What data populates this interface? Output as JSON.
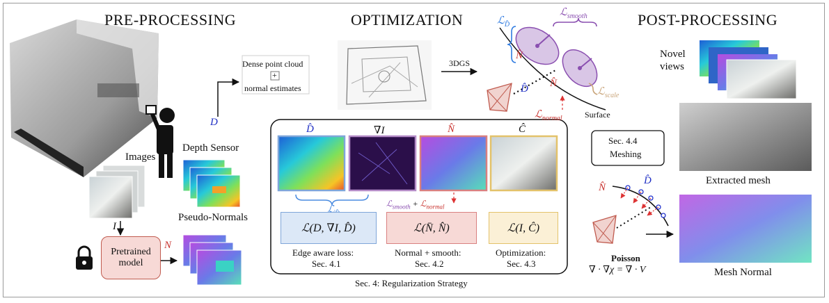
{
  "headings": {
    "pre": "PRE-PROCESSING",
    "opt": "OPTIMIZATION",
    "post": "POST-PROCESSING"
  },
  "pre": {
    "images_label": "Images",
    "image_symbol": "I",
    "depth_symbol": "D",
    "depth_sensor_label": "Depth Sensor",
    "pseudo_normals_label": "Pseudo-Normals",
    "normal_symbol": "N",
    "pretrained_label_1": "Pretrained",
    "pretrained_label_2": "model"
  },
  "opt": {
    "dense_label": "Dense point cloud",
    "plus": "+",
    "normal_estimates": "normal estimates",
    "arrow_3dgs": "3DGS",
    "loss_d": "ℒ",
    "loss_d_sub": "D̂",
    "loss_smooth": "ℒ",
    "loss_smooth_sub": "smooth",
    "loss_scale": "ℒ",
    "loss_scale_sub": "scale",
    "loss_normal": "ℒ",
    "loss_normal_sub": "normal",
    "n_hat": "N̂",
    "d_hat": "D̂",
    "surface": "Surface"
  },
  "reg": {
    "col_d": "D̂",
    "col_grad": "∇I",
    "col_n": "N̂",
    "col_c": "Ĉ",
    "brace_loss": "ℒ",
    "brace_loss_sub": "D̂",
    "smooth_normal_a": "ℒ",
    "smooth_normal_a_sub": "smooth",
    "smooth_normal_plus": "+",
    "smooth_normal_b": "ℒ",
    "smooth_normal_b_sub": "normal",
    "box1": "ℒ(D, ∇I, D̂)",
    "box2": "ℒ(N̄, N̂)",
    "box3": "ℒ(I, Ĉ)",
    "cap1a": "Edge aware loss:",
    "cap1b": "Sec. 4.1",
    "cap2a": "Normal + smooth:",
    "cap2b": "Sec. 4.2",
    "cap3a": "Optimization:",
    "cap3b": "Sec. 4.3",
    "caption": "Sec. 4: Regularization Strategy"
  },
  "post": {
    "novel_1": "Novel",
    "novel_2": "views",
    "meshing_1": "Sec. 4.4",
    "meshing_2": "Meshing",
    "n_hat": "N̂",
    "d_hat": "D̂",
    "poisson": "Poisson",
    "poisson_eq": "∇ · ∇χ = ∇ · V⃗",
    "extracted_mesh": "Extracted mesh",
    "mesh_normal": "Mesh Normal"
  },
  "colors": {
    "blue_border": "#7fa6d9",
    "purple_border": "#b58cc8",
    "red_border": "#d98080",
    "yellow_border": "#e3c26a",
    "blue_fill": "#dce8f7",
    "red_fill": "#f7d9d6",
    "yellow_fill": "#fbf0d6",
    "symbol_blue": "#1f2fc4",
    "symbol_red": "#c8322e",
    "purple": "#8a4fb0",
    "tan": "#c9a57a"
  }
}
